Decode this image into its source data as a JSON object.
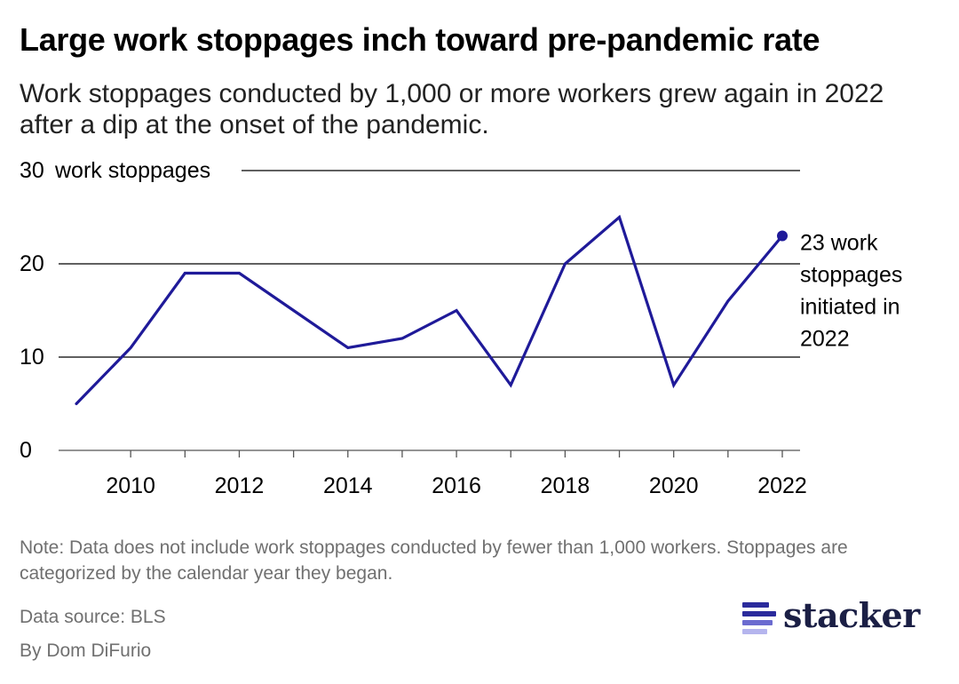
{
  "header": {
    "title": "Large work stoppages inch toward pre-pandemic rate",
    "subtitle": "Work stoppages conducted by 1,000 or more workers grew again in 2022 after a dip at the onset of the pandemic."
  },
  "footer": {
    "note": "Note: Data does not include work stoppages conducted by fewer than 1,000 workers. Stoppages are categorized by the calendar year they began.",
    "source": "Data source: BLS",
    "byline": "By Dom DiFurio"
  },
  "logo": {
    "text": "stacker"
  },
  "colors": {
    "line": "#1f1a99",
    "grid": "#000000",
    "text": "#000000",
    "muted": "#707070",
    "logo": "#1b1f45",
    "logo_accent": "#2b2b9c"
  },
  "chart_data": {
    "type": "line",
    "title": "Large work stoppages inch toward pre-pandemic rate",
    "x": [
      2009,
      2010,
      2011,
      2012,
      2013,
      2014,
      2015,
      2016,
      2017,
      2018,
      2019,
      2020,
      2021,
      2022
    ],
    "series": [
      {
        "values": [
          5,
          11,
          19,
          19,
          15,
          11,
          12,
          15,
          7,
          20,
          25,
          7,
          16,
          23
        ]
      }
    ],
    "xlim": [
      2009,
      2022
    ],
    "ylim": [
      0,
      30
    ],
    "y_ticks": [
      0,
      10,
      20,
      30
    ],
    "y_tick_labels": [
      "0",
      "10",
      "20",
      "30"
    ],
    "y_unit_label": "work stoppages",
    "x_ticks": [
      2010,
      2012,
      2014,
      2016,
      2018,
      2020,
      2022
    ],
    "x_tick_labels": [
      "2010",
      "2012",
      "2014",
      "2016",
      "2018",
      "2020",
      "2022"
    ],
    "grid": true,
    "annotation": {
      "x": 2022,
      "y": 23,
      "lines": [
        "23 work",
        "stoppages",
        "initiated in",
        "2022"
      ]
    }
  }
}
